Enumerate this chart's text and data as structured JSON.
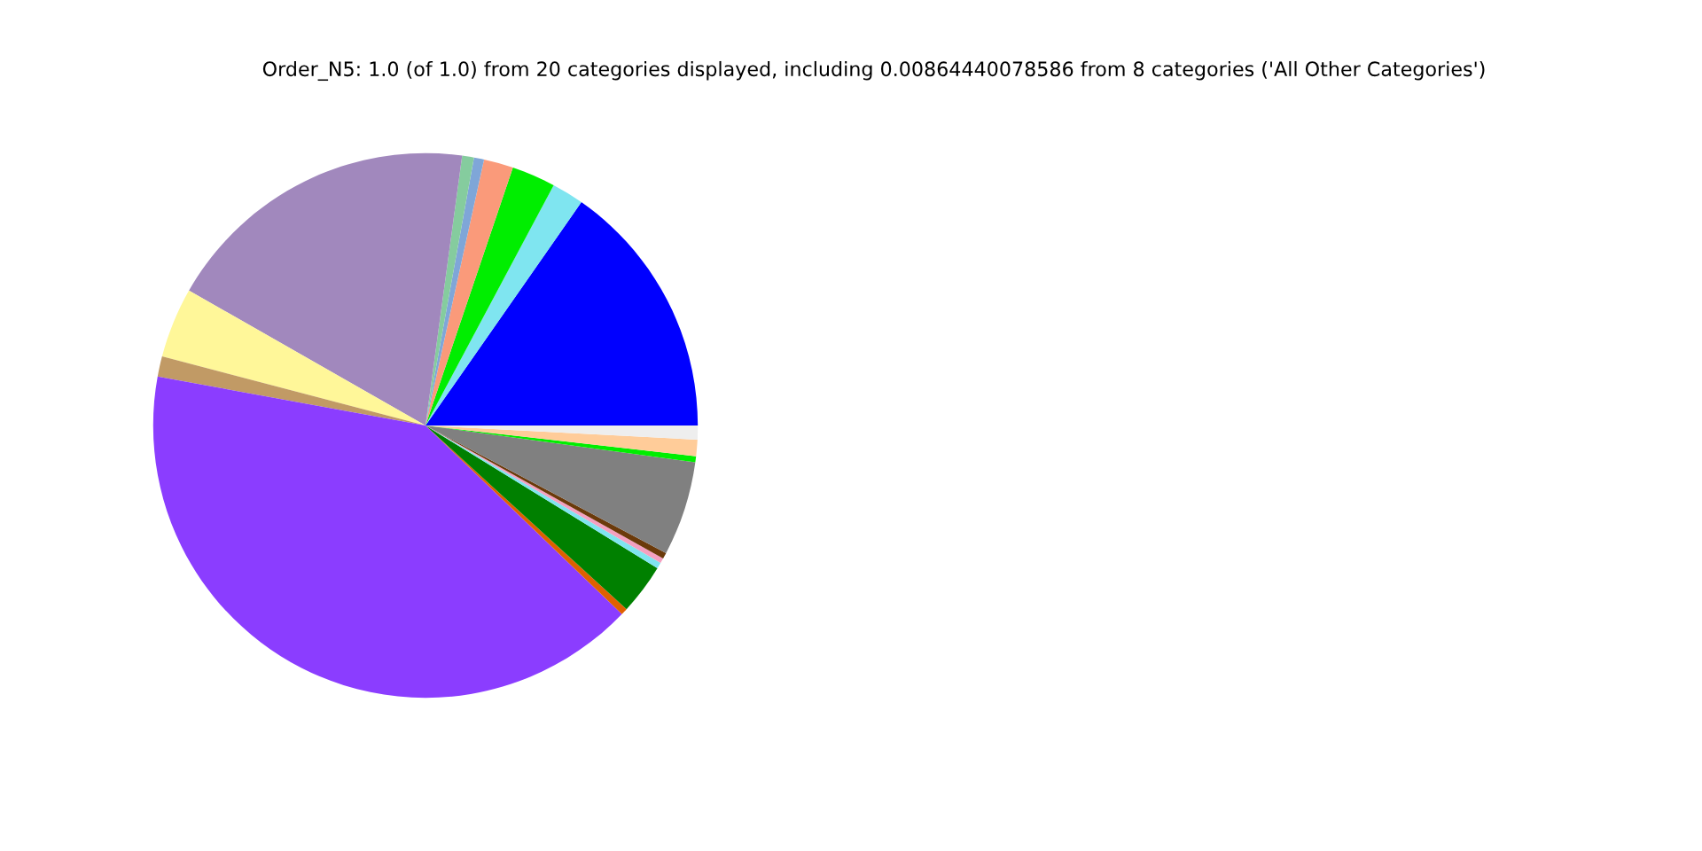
{
  "chart_data": {
    "type": "pie",
    "title": "Order_N5: 1.0 (of 1.0) from 20 categories displayed, including 0.00864440078586 from 8 categories ('All Other Categories')",
    "categories": [
      null,
      null,
      null,
      null,
      null,
      null,
      null,
      null,
      null,
      null,
      null,
      null,
      null,
      null,
      null,
      null,
      null,
      null,
      null
    ],
    "values": [
      15.3,
      1.9,
      2.6,
      1.75,
      0.6,
      0.7,
      18.9,
      4.17,
      1.2,
      40.7,
      0.4,
      3.0,
      0.36,
      0.3,
      0.36,
      5.6,
      0.36,
      0.97,
      0.83
    ],
    "colors": [
      "#0000ff",
      "#7fe5f0",
      "#00ee00",
      "#fa9a7a",
      "#7fa6d8",
      "#85cc9e",
      "#a188bd",
      "#fff799",
      "#c19a65",
      "#8b3dff",
      "#e06000",
      "#008000",
      "#7fe5f0",
      "#f4a0c0",
      "#6b3a0a",
      "#808080",
      "#00ee00",
      "#ffcc99",
      "#eeeeee"
    ],
    "legend": false
  }
}
